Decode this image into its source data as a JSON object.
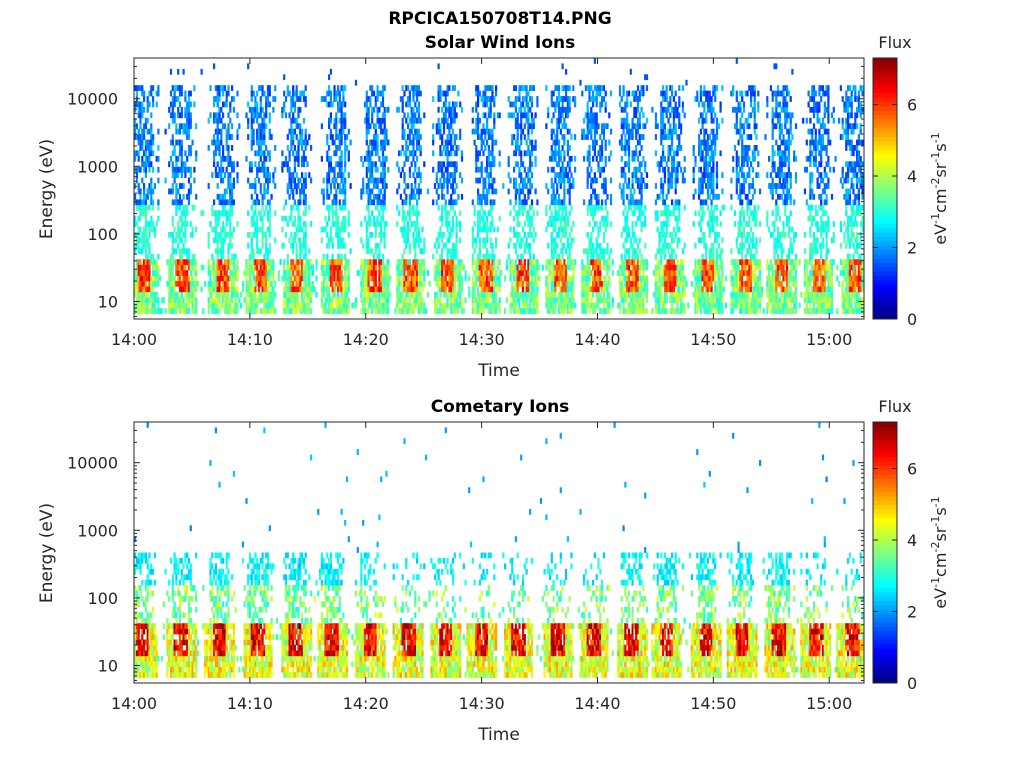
{
  "figure_title": "RPCICA150708T14.PNG",
  "chart_data": [
    {
      "type": "heatmap",
      "title": "Solar Wind Ions",
      "xlabel": "Time",
      "ylabel": "Energy (eV)",
      "y_scale": "log",
      "ylim": [
        5.5,
        40000
      ],
      "x_range_minutes": [
        0,
        63
      ],
      "x_ticks": [
        {
          "v": 0,
          "label": "14:00"
        },
        {
          "v": 10,
          "label": "14:10"
        },
        {
          "v": 20,
          "label": "14:20"
        },
        {
          "v": 30,
          "label": "14:30"
        },
        {
          "v": 40,
          "label": "14:40"
        },
        {
          "v": 50,
          "label": "14:50"
        },
        {
          "v": 60,
          "label": "15:00"
        }
      ],
      "y_ticks": [
        {
          "v": 10,
          "label": "10"
        },
        {
          "v": 100,
          "label": "100"
        },
        {
          "v": 1000,
          "label": "1000"
        },
        {
          "v": 10000,
          "label": "10000"
        }
      ],
      "colorbar": {
        "label": "Flux",
        "unit_label": "eV-1cm-2sr-1s-1",
        "range": [
          0,
          7.3
        ],
        "ticks": [
          {
            "v": 0,
            "label": "0"
          },
          {
            "v": 2,
            "label": "2"
          },
          {
            "v": 4,
            "label": "4"
          },
          {
            "v": 6,
            "label": "6"
          }
        ]
      },
      "colormap": "jet",
      "burst_times_minutes": [
        0.8,
        4.1,
        7.6,
        10.8,
        14.0,
        17.3,
        20.7,
        23.8,
        27.0,
        30.3,
        33.5,
        36.7,
        39.8,
        43.0,
        46.2,
        49.5,
        52.7,
        55.8,
        59.0,
        62.2
      ],
      "features": {
        "high_energy_band_ev": [
          50,
          15000
        ],
        "high_energy_flux": 2.0,
        "low_energy_band_ev": [
          7,
          45
        ],
        "low_energy_peak_flux": 6.5
      }
    },
    {
      "type": "heatmap",
      "title": "Cometary Ions",
      "xlabel": "Time",
      "ylabel": "Energy (eV)",
      "y_scale": "log",
      "ylim": [
        5.5,
        40000
      ],
      "x_range_minutes": [
        0,
        63
      ],
      "x_ticks": [
        {
          "v": 0,
          "label": "14:00"
        },
        {
          "v": 10,
          "label": "14:10"
        },
        {
          "v": 20,
          "label": "14:20"
        },
        {
          "v": 30,
          "label": "14:30"
        },
        {
          "v": 40,
          "label": "14:40"
        },
        {
          "v": 50,
          "label": "14:50"
        },
        {
          "v": 60,
          "label": "15:00"
        }
      ],
      "y_ticks": [
        {
          "v": 10,
          "label": "10"
        },
        {
          "v": 100,
          "label": "100"
        },
        {
          "v": 1000,
          "label": "1000"
        },
        {
          "v": 10000,
          "label": "10000"
        }
      ],
      "colorbar": {
        "label": "Flux",
        "unit_label": "eV-1cm-2sr-1s-1",
        "range": [
          0,
          7.3
        ],
        "ticks": [
          {
            "v": 0,
            "label": "0"
          },
          {
            "v": 2,
            "label": "2"
          },
          {
            "v": 4,
            "label": "4"
          },
          {
            "v": 6,
            "label": "6"
          }
        ]
      },
      "colormap": "jet",
      "burst_times_minutes": [
        0.6,
        4.0,
        7.3,
        10.6,
        13.9,
        17.0,
        20.3,
        23.6,
        26.8,
        29.9,
        33.1,
        36.5,
        39.6,
        42.9,
        45.9,
        49.3,
        52.4,
        55.6,
        58.8,
        61.9
      ],
      "features": {
        "plume_band_ev": [
          45,
          500
        ],
        "low_energy_band_ev": [
          7,
          45
        ],
        "low_energy_peak_flux": 6.9,
        "sparse_high_energy_points_ev": [
          400,
          10000
        ]
      }
    }
  ]
}
